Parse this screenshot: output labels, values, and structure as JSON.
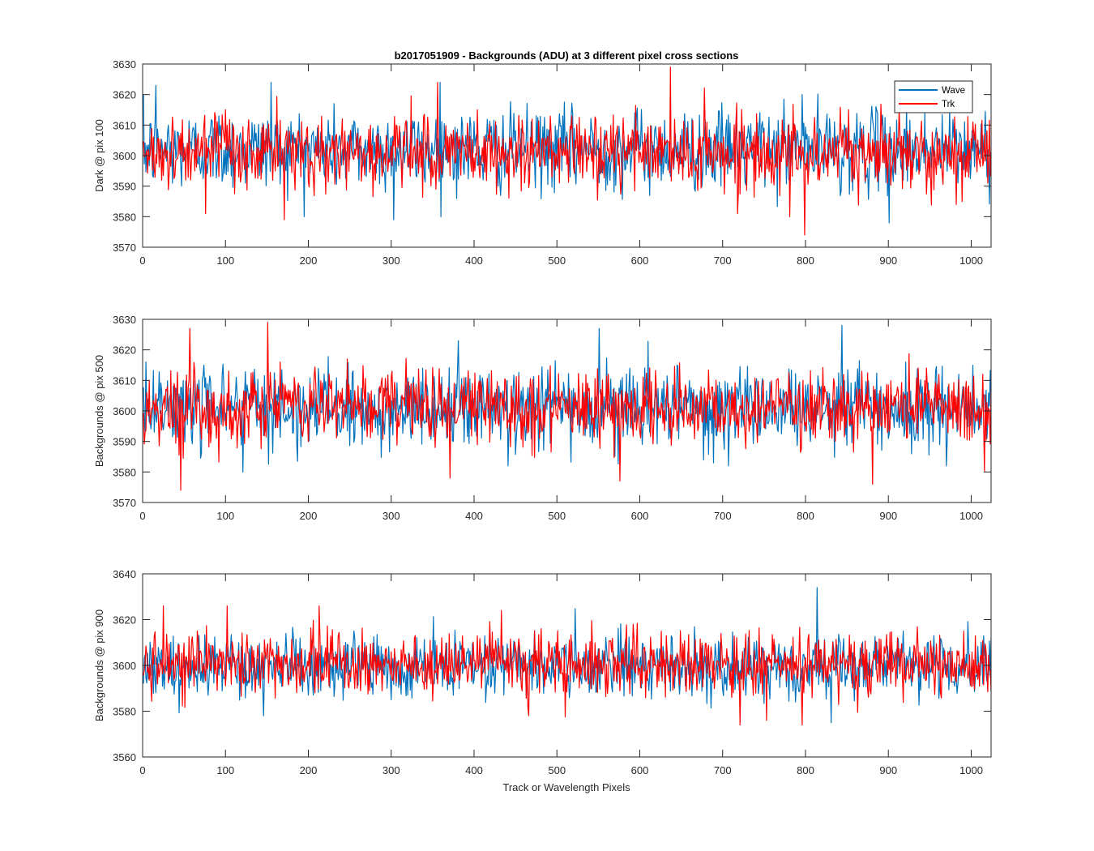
{
  "colors": {
    "wave": "#0072BD",
    "trk": "#FF0000",
    "axis": "#262626",
    "background": "#ffffff"
  },
  "chart_data": [
    {
      "type": "line",
      "title": "b2017051909 - Backgrounds (ADU) at 3 different pixel cross sections",
      "xlabel": "",
      "ylabel": "Dark @ pix 100",
      "xlim": [
        0,
        1024
      ],
      "ylim": [
        3570,
        3630
      ],
      "xticks": [
        0,
        100,
        200,
        300,
        400,
        500,
        600,
        700,
        800,
        900,
        1000
      ],
      "yticks": [
        3570,
        3580,
        3590,
        3600,
        3610,
        3620,
        3630
      ],
      "legend": {
        "position": "top-right",
        "entries": [
          "Wave",
          "Trk"
        ]
      },
      "series": [
        {
          "name": "Wave",
          "n": 1024,
          "mean": 3602,
          "std": 6.5,
          "min": 3578,
          "max": 3624,
          "peaks": [
            [
              15,
              3623
            ],
            [
              154,
              3624
            ],
            [
              302,
              3579
            ],
            [
              358,
              3624
            ],
            [
              795,
              3620
            ],
            [
              900,
              3578
            ]
          ]
        },
        {
          "name": "Trk",
          "n": 1024,
          "mean": 3601,
          "std": 6.0,
          "min": 3574,
          "max": 3629,
          "peaks": [
            [
              75,
              3581
            ],
            [
              170,
              3579
            ],
            [
              355,
              3624
            ],
            [
              636,
              3629
            ],
            [
              780,
              3580
            ],
            [
              798,
              3574
            ]
          ]
        }
      ]
    },
    {
      "type": "line",
      "title": "",
      "xlabel": "",
      "ylabel": "Backgrounds @ pix 500",
      "xlim": [
        0,
        1024
      ],
      "ylim": [
        3570,
        3630
      ],
      "xticks": [
        0,
        100,
        200,
        300,
        400,
        500,
        600,
        700,
        800,
        900,
        1000
      ],
      "yticks": [
        3570,
        3580,
        3590,
        3600,
        3610,
        3620,
        3630
      ],
      "series": [
        {
          "name": "Wave",
          "n": 1024,
          "mean": 3601,
          "std": 6.5,
          "min": 3580,
          "max": 3628,
          "peaks": [
            [
              550,
              3627
            ],
            [
              843,
              3628
            ],
            [
              380,
              3623
            ],
            [
              120,
              3580
            ]
          ]
        },
        {
          "name": "Trk",
          "n": 1024,
          "mean": 3601,
          "std": 6.0,
          "min": 3574,
          "max": 3629,
          "peaks": [
            [
              45,
              3574
            ],
            [
              56,
              3627
            ],
            [
              150,
              3629
            ],
            [
              575,
              3577
            ],
            [
              880,
              3576
            ],
            [
              370,
              3578
            ]
          ]
        }
      ]
    },
    {
      "type": "line",
      "title": "",
      "xlabel": "Track or Wavelength Pixels",
      "ylabel": "Backgrounds @ pix 900",
      "xlim": [
        0,
        1024
      ],
      "ylim": [
        3560,
        3640
      ],
      "xticks": [
        0,
        100,
        200,
        300,
        400,
        500,
        600,
        700,
        800,
        900,
        1000
      ],
      "yticks": [
        3560,
        3580,
        3600,
        3620,
        3640
      ],
      "series": [
        {
          "name": "Wave",
          "n": 1024,
          "mean": 3600,
          "std": 7.0,
          "min": 3575,
          "max": 3634,
          "peaks": [
            [
              813,
              3634
            ],
            [
              145,
              3578
            ],
            [
              830,
              3575
            ]
          ]
        },
        {
          "name": "Trk",
          "n": 1024,
          "mean": 3601,
          "std": 7.0,
          "min": 3574,
          "max": 3626,
          "peaks": [
            [
              24,
              3626
            ],
            [
              101,
              3626
            ],
            [
              212,
              3626
            ],
            [
              720,
              3574
            ],
            [
              795,
              3574
            ],
            [
              465,
              3578
            ]
          ]
        }
      ]
    }
  ]
}
